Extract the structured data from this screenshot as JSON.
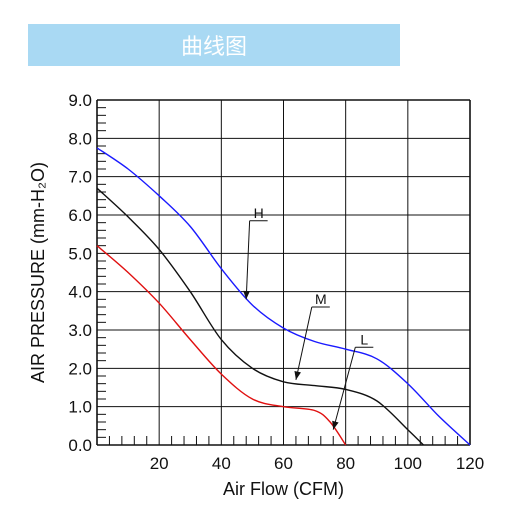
{
  "banner": {
    "title": "曲线图",
    "color": "#a9d9f3"
  },
  "chart_data": {
    "type": "line",
    "xlabel": "Air Flow (CFM)",
    "ylabel": "AIR PRESSURE (mm-H₂O)",
    "xlim": [
      0,
      120
    ],
    "ylim": [
      0,
      9
    ],
    "xticks": [
      20,
      40,
      60,
      80,
      100,
      120
    ],
    "yticks": [
      "0.0",
      "1.0",
      "2.0",
      "3.0",
      "4.0",
      "5.0",
      "6.0",
      "7.0",
      "8.0",
      "9.0"
    ],
    "grid": true,
    "series": [
      {
        "name": "H",
        "color": "#1a1aff",
        "x": [
          0,
          10,
          20,
          30,
          40,
          50,
          60,
          70,
          80,
          90,
          100,
          110,
          120
        ],
        "y": [
          7.75,
          7.2,
          6.5,
          5.7,
          4.6,
          3.65,
          3.05,
          2.7,
          2.5,
          2.25,
          1.6,
          0.75,
          0.0
        ]
      },
      {
        "name": "M",
        "color": "#111111",
        "x": [
          0,
          10,
          20,
          30,
          40,
          50,
          60,
          70,
          80,
          90,
          100,
          105
        ],
        "y": [
          6.7,
          5.95,
          5.1,
          4.0,
          2.75,
          2.0,
          1.65,
          1.55,
          1.45,
          1.15,
          0.4,
          0.0
        ]
      },
      {
        "name": "L",
        "color": "#e01010",
        "x": [
          0,
          10,
          20,
          30,
          40,
          50,
          60,
          70,
          75,
          80
        ],
        "y": [
          5.2,
          4.5,
          3.7,
          2.75,
          1.85,
          1.2,
          1.0,
          0.9,
          0.6,
          0.0
        ]
      }
    ]
  }
}
